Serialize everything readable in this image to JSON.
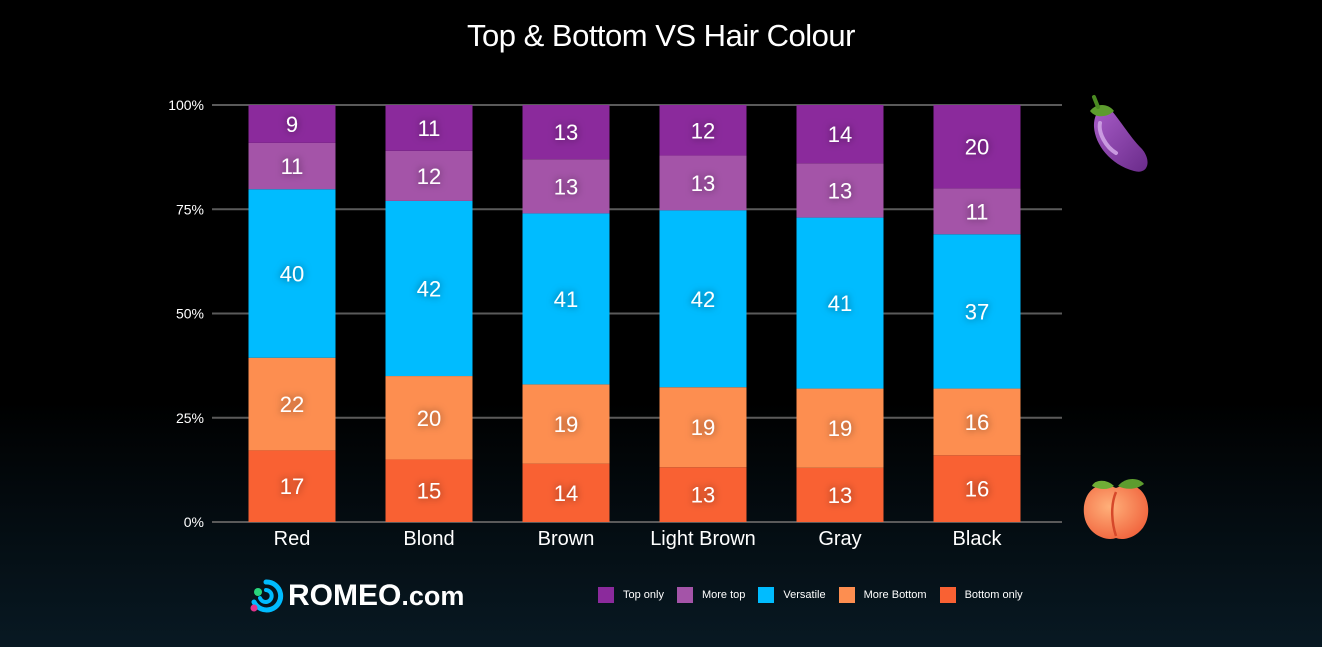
{
  "chart_data": {
    "type": "bar",
    "stacked": true,
    "title": "Top & Bottom VS Hair Colour",
    "categories": [
      "Red",
      "Blond",
      "Brown",
      "Light Brown",
      "Gray",
      "Black"
    ],
    "series": [
      {
        "name": "Bottom only",
        "color": "#F96133",
        "values": [
          17,
          15,
          14,
          13,
          13,
          16
        ]
      },
      {
        "name": "More Bottom",
        "color": "#FD8E50",
        "values": [
          22,
          20,
          19,
          19,
          19,
          16
        ]
      },
      {
        "name": "Versatile",
        "color": "#00BCFF",
        "values": [
          40,
          42,
          41,
          42,
          41,
          37
        ]
      },
      {
        "name": "More top",
        "color": "#A454A8",
        "values": [
          11,
          12,
          13,
          13,
          13,
          11
        ]
      },
      {
        "name": "Top only",
        "color": "#8B2A9C",
        "values": [
          9,
          11,
          13,
          12,
          14,
          20
        ]
      }
    ],
    "yticks": [
      "0%",
      "25%",
      "50%",
      "75%",
      "100%"
    ],
    "ylim": [
      0,
      100
    ],
    "grid": true,
    "legend_position": "bottom-right",
    "legend_order": [
      "Top only",
      "More top",
      "Versatile",
      "More Bottom",
      "Bottom only"
    ]
  },
  "branding": {
    "logo_name": "ROMEO",
    "logo_suffix": ".com"
  },
  "icons": {
    "top": "eggplant-icon",
    "bottom": "peach-icon"
  }
}
